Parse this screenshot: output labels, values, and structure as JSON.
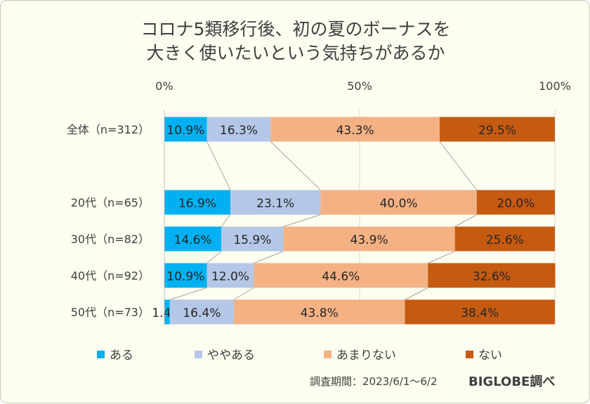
{
  "chart_data": {
    "type": "bar",
    "stacked": true,
    "orientation": "horizontal",
    "title_lines": [
      "コロナ5類移行後、初の夏のボーナスを",
      "大きく使いたいという気持ちがあるか"
    ],
    "xlim": [
      0,
      100
    ],
    "x_ticks": [
      "0%",
      "50%",
      "100%"
    ],
    "categories": [
      "全体（n=312）",
      "20代（n=65）",
      "30代（n=82）",
      "40代（n=92）",
      "50代（n=73）"
    ],
    "series": [
      {
        "name": "ある",
        "color": "#00b0f0",
        "values": [
          10.9,
          16.9,
          14.6,
          10.9,
          1.4
        ],
        "labels": [
          "10.9%",
          "16.9%",
          "14.6%",
          "10.9%",
          "1.4%"
        ]
      },
      {
        "name": "ややある",
        "color": "#b4c7e7",
        "values": [
          16.3,
          23.1,
          15.9,
          12.0,
          16.4
        ],
        "labels": [
          "16.3%",
          "23.1%",
          "15.9%",
          "12.0%",
          "16.4%"
        ]
      },
      {
        "name": "あまりない",
        "color": "#f4b183",
        "values": [
          43.3,
          40.0,
          43.9,
          44.6,
          43.8
        ],
        "labels": [
          "43.3%",
          "40.0%",
          "43.9%",
          "44.6%",
          "43.8%"
        ]
      },
      {
        "name": "ない",
        "color": "#c55a11",
        "values": [
          29.5,
          20.0,
          25.6,
          32.6,
          38.4
        ],
        "labels": [
          "29.5%",
          "20.0%",
          "25.6%",
          "32.6%",
          "38.4%"
        ]
      }
    ],
    "grid": true,
    "legend_position": "bottom"
  },
  "footer": {
    "note": "調査期間：2023/6/1～6/2",
    "brand": "BIGLOBE調べ"
  }
}
